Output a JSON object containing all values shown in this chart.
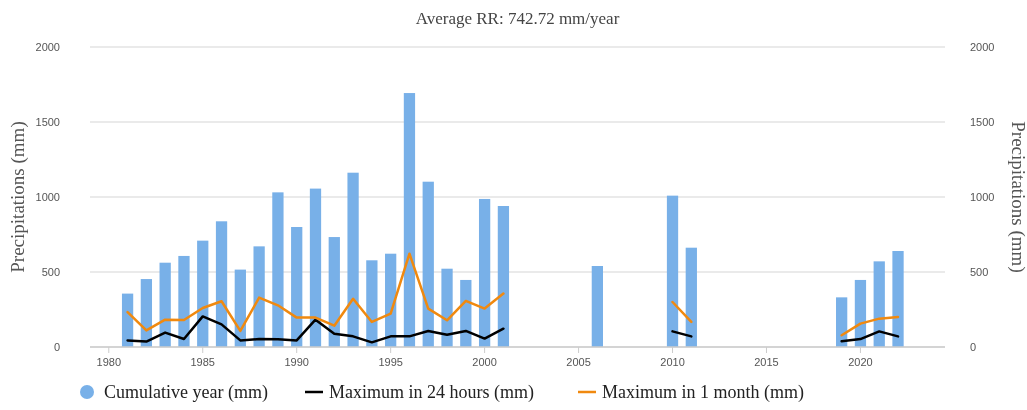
{
  "chart_data": {
    "type": "bar",
    "title": "Average RR: 742.72 mm/year",
    "ylabel": "Precipitations (mm)",
    "y2label": "Precipitations (mm)",
    "x": [
      1981,
      1982,
      1983,
      1984,
      1985,
      1986,
      1987,
      1988,
      1989,
      1990,
      1991,
      1992,
      1993,
      1994,
      1995,
      1996,
      1997,
      1998,
      1999,
      2000,
      2001,
      2006,
      2010,
      2011,
      2019,
      2020,
      2021,
      2022
    ],
    "series": [
      {
        "name": "Cumulative year (mm)",
        "color": "#78b0e8",
        "values": [
          356,
          453,
          562,
          607,
          709,
          838,
          516,
          671,
          1031,
          800,
          1056,
          733,
          1162,
          578,
          622,
          1693,
          1102,
          522,
          447,
          987,
          940,
          540,
          1009,
          662,
          331,
          447,
          571,
          640
        ]
      },
      {
        "name": "Maximum in 24 hours (mm)",
        "type": "line",
        "color": "#000000",
        "x": [
          1981,
          1982,
          1983,
          1984,
          1985,
          1986,
          1987,
          1988,
          1989,
          1990,
          1991,
          1992,
          1993,
          1994,
          1995,
          1996,
          1997,
          1998,
          1999,
          2000,
          2001,
          2006,
          2010,
          2011,
          2015,
          2019,
          2020,
          2021,
          2022
        ],
        "values": [
          44,
          36,
          96,
          53,
          204,
          151,
          44,
          53,
          51,
          44,
          182,
          89,
          71,
          31,
          71,
          71,
          107,
          82,
          107,
          56,
          122,
          null,
          104,
          71,
          null,
          38,
          53,
          104,
          71
        ]
      },
      {
        "name": "Maximum in 1 month (mm)",
        "type": "line",
        "color": "#f0890f",
        "x": [
          1981,
          1982,
          1983,
          1984,
          1985,
          1986,
          1987,
          1988,
          1989,
          1990,
          1991,
          1992,
          1993,
          1994,
          1995,
          1996,
          1997,
          1998,
          1999,
          2000,
          2001,
          2006,
          2010,
          2011,
          2015,
          2019,
          2020,
          2021,
          2022
        ],
        "values": [
          233,
          111,
          182,
          180,
          260,
          305,
          107,
          329,
          278,
          196,
          196,
          142,
          322,
          167,
          222,
          622,
          256,
          178,
          307,
          256,
          356,
          null,
          300,
          167,
          null,
          78,
          156,
          189,
          200
        ]
      }
    ],
    "xlim": [
      1979,
      2024.5
    ],
    "xticks": [
      1980,
      1985,
      1990,
      1995,
      2000,
      2005,
      2010,
      2015,
      2020
    ],
    "ylim": [
      0,
      2000
    ],
    "yticks": [
      0,
      500,
      1000,
      1500,
      2000
    ],
    "y2lim": [
      0,
      2000
    ],
    "y2ticks": [
      0,
      500,
      1000,
      1500,
      2000
    ],
    "grid": "y",
    "legend": "bottom"
  }
}
